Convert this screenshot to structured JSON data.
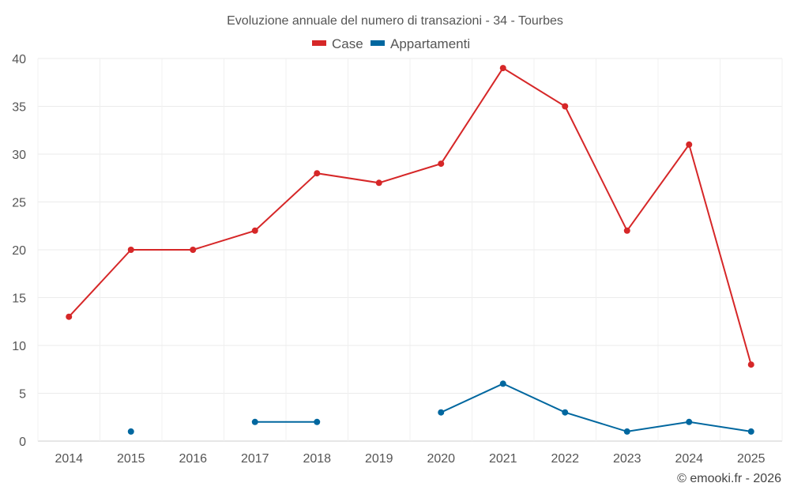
{
  "chart_data": {
    "type": "line",
    "title": "Evoluzione annuale del numero di transazioni - 34 - Tourbes",
    "categories": [
      "2014",
      "2015",
      "2016",
      "2017",
      "2018",
      "2019",
      "2020",
      "2021",
      "2022",
      "2023",
      "2024",
      "2025"
    ],
    "series": [
      {
        "name": "Case",
        "color": "#d62728",
        "values": [
          13,
          20,
          20,
          22,
          28,
          27,
          29,
          39,
          35,
          22,
          31,
          8
        ]
      },
      {
        "name": "Appartamenti",
        "color": "#00679f",
        "values": [
          null,
          1,
          null,
          2,
          2,
          null,
          3,
          6,
          3,
          1,
          2,
          1
        ]
      }
    ],
    "ylim": [
      0,
      40
    ],
    "yticks": [
      0,
      5,
      10,
      15,
      20,
      25,
      30,
      35,
      40
    ],
    "grid": true,
    "legend": "top-center",
    "xlabel": "",
    "ylabel": "",
    "credit": "© emooki.fr - 2026"
  }
}
